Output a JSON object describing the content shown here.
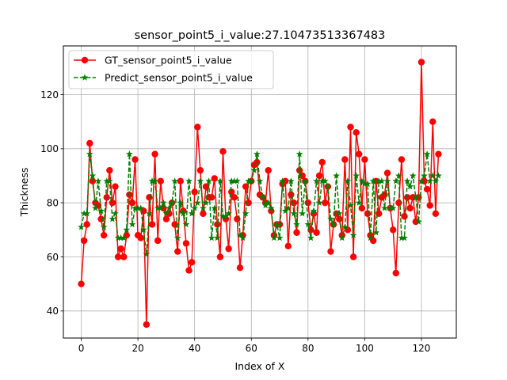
{
  "chart_data": {
    "type": "line",
    "title": "sensor_point5_i_value:27.10473513367483",
    "xlabel": "Index of X",
    "ylabel": "Thickness",
    "xlim": [
      -6.3,
      132.3
    ],
    "ylim": [
      30,
      138
    ],
    "xticks": [
      0,
      20,
      40,
      60,
      80,
      100,
      120
    ],
    "yticks": [
      40,
      60,
      80,
      100,
      120
    ],
    "grid": true,
    "legend_position": "upper left",
    "series": [
      {
        "name": "GT_sensor_point5_i_value",
        "color": "#ff0000",
        "linestyle": "solid",
        "marker": "circle",
        "values": [
          50,
          66,
          72,
          102,
          88,
          80,
          79,
          74,
          68,
          82,
          92,
          80,
          86,
          60,
          63,
          60,
          68,
          83,
          80,
          96,
          68,
          67,
          77,
          35,
          82,
          72,
          98,
          66,
          88,
          78,
          74,
          76,
          80,
          72,
          62,
          88,
          77,
          65,
          55,
          58,
          84,
          108,
          92,
          76,
          86,
          82,
          82,
          89,
          72,
          60,
          99,
          74,
          63,
          84,
          82,
          74,
          56,
          68,
          86,
          80,
          88,
          94,
          95,
          83,
          82,
          80,
          92,
          77,
          68,
          72,
          72,
          87,
          88,
          64,
          83,
          80,
          69,
          92,
          90,
          88,
          80,
          70,
          76,
          69,
          90,
          95,
          80,
          86,
          62,
          72,
          76,
          74,
          68,
          96,
          70,
          108,
          60,
          106,
          98,
          78,
          96,
          76,
          68,
          66,
          88,
          76,
          82,
          83,
          91,
          78,
          70,
          54,
          80,
          96,
          75,
          82,
          78,
          82,
          73,
          82,
          132,
          88,
          85,
          79,
          110,
          76,
          98
        ]
      },
      {
        "name": "Predict_sensor_point5_i_value",
        "color": "#008000",
        "linestyle": "dashed",
        "marker": "star",
        "values": [
          71,
          76,
          76,
          98,
          90,
          78,
          88,
          77,
          71,
          88,
          88,
          74,
          76,
          67,
          67,
          67,
          70,
          98,
          72,
          78,
          78,
          78,
          70,
          61,
          76,
          88,
          88,
          78,
          78,
          80,
          76,
          78,
          80,
          88,
          67,
          80,
          76,
          72,
          88,
          76,
          78,
          80,
          88,
          78,
          80,
          88,
          67,
          78,
          67,
          88,
          75,
          75,
          76,
          88,
          88,
          88,
          68,
          67,
          76,
          88,
          88,
          92,
          98,
          88,
          82,
          79,
          80,
          78,
          67,
          72,
          67,
          88,
          77,
          78,
          88,
          76,
          72,
          98,
          76,
          88,
          72,
          67,
          77,
          88,
          80,
          88,
          88,
          86,
          74,
          72,
          90,
          76,
          67,
          71,
          88,
          79,
          68,
          90,
          80,
          88,
          87,
          87,
          67,
          88,
          69,
          88,
          88,
          78,
          88,
          78,
          78,
          88,
          90,
          67,
          67,
          88,
          86,
          90,
          82,
          73,
          88,
          90,
          98,
          88,
          90,
          88,
          90
        ]
      }
    ]
  }
}
